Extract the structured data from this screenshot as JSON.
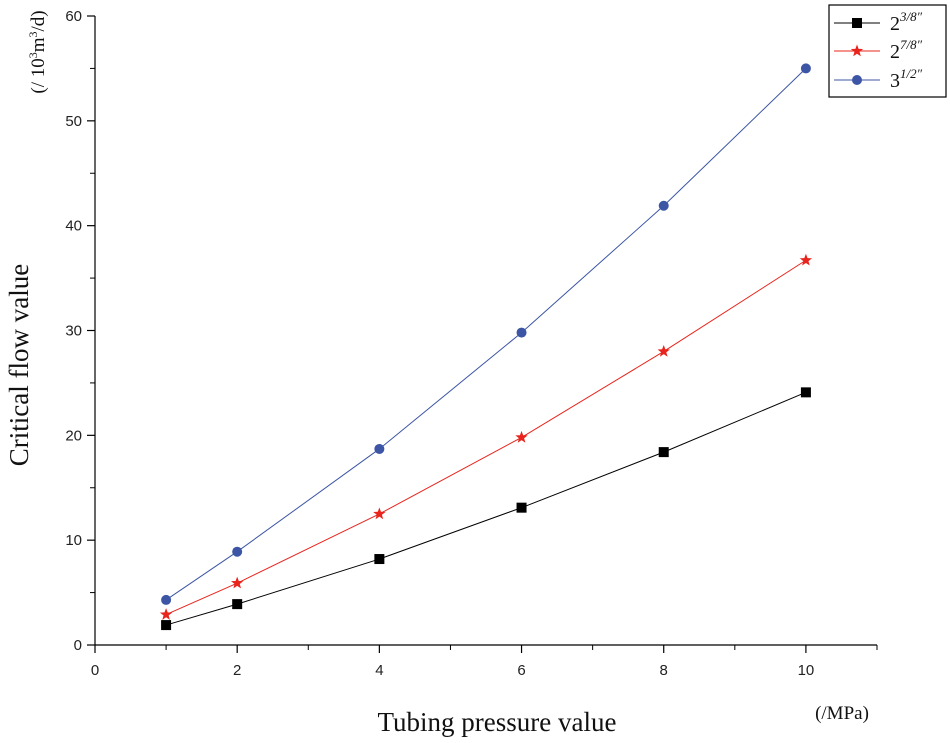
{
  "chart_data": {
    "type": "line",
    "xlabel": "Tubing pressure value",
    "ylabel": "Critical flow value",
    "x_unit": "(/MPa)",
    "y_unit": {
      "prefix": "(/ 10",
      "sup1": "3",
      "mid": "m",
      "sup2": "3",
      "suffix": "/d)"
    },
    "xlim": [
      0,
      11
    ],
    "ylim": [
      0,
      60
    ],
    "x_ticks": [
      0,
      2,
      4,
      6,
      8,
      10
    ],
    "x_ticks_minor": [
      1,
      3,
      5,
      7,
      9,
      11
    ],
    "y_ticks": [
      0,
      10,
      20,
      30,
      40,
      50,
      60
    ],
    "y_ticks_minor": [
      5,
      15,
      25,
      35,
      45,
      55
    ],
    "x": [
      1,
      2,
      4,
      6,
      8,
      10
    ],
    "series": [
      {
        "name": "2 3/8″",
        "base": "2",
        "sup": "3/8″",
        "color": "#000000",
        "marker": "square",
        "values": [
          1.9,
          3.9,
          8.2,
          13.1,
          18.4,
          24.1
        ]
      },
      {
        "name": "2 7/8″",
        "base": "2",
        "sup": "7/8″",
        "color": "#e8241c",
        "marker": "star",
        "values": [
          2.9,
          5.9,
          12.5,
          19.8,
          28.0,
          36.7
        ]
      },
      {
        "name": "3 1/2″",
        "base": "3",
        "sup": "1/2″",
        "color": "#3c55a5",
        "marker": "circle",
        "values": [
          4.3,
          8.9,
          18.7,
          29.8,
          41.9,
          55.0
        ]
      }
    ],
    "legend_position": "top-right"
  }
}
